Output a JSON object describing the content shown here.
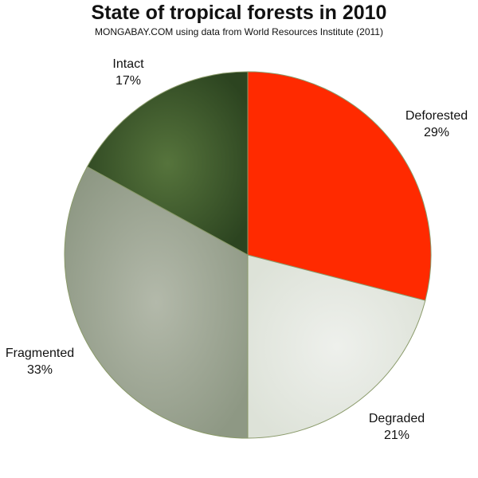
{
  "chart_data": {
    "type": "pie",
    "title": "State of tropical forests in 2010",
    "subtitle": "MONGABAY.COM using data from World Resources Institute (2011)",
    "slices": [
      {
        "label": "Deforested",
        "value": 29,
        "display": "29%",
        "color": "#ff2a00"
      },
      {
        "label": "Degraded",
        "value": 21,
        "display": "21%",
        "color": "#e6e9e3"
      },
      {
        "label": "Fragmented",
        "value": 33,
        "display": "33%",
        "color": "#a3ab99"
      },
      {
        "label": "Intact",
        "value": 17,
        "display": "17%",
        "color": "#3f5a2e"
      }
    ],
    "start_angle": "12 o'clock",
    "direction": "clockwise",
    "legend": "none"
  }
}
